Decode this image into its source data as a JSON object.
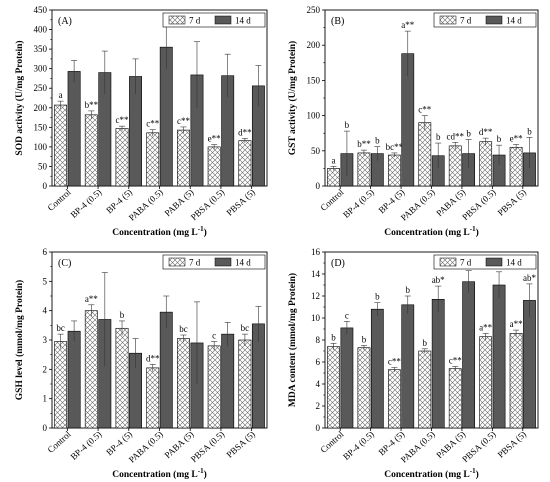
{
  "chart_data": [
    {
      "type": "bar",
      "panel_label": "(A)",
      "ylabel": "SOD activity (U/mg Protein)",
      "xlabel": "Concentration (mg L",
      "xlabel_sup": "-1",
      "xlabel_end": ")",
      "categories": [
        "Control",
        "BP-4 (0.5)",
        "BP-4 (5)",
        "PABA (0.5)",
        "PABA (5)",
        "PBSA (0.5)",
        "PBSA (5)"
      ],
      "ylim": [
        0,
        450
      ],
      "yticks": [
        0,
        50,
        100,
        150,
        200,
        250,
        300,
        350,
        400,
        450
      ],
      "legend_position": "top-right",
      "series": [
        {
          "name": "7 d",
          "values": [
            207,
            182,
            147,
            136,
            143,
            100,
            116
          ],
          "errors": [
            10,
            10,
            6,
            8,
            8,
            6,
            6
          ],
          "labels": [
            "a",
            "b**",
            "c**",
            "c**",
            "c**",
            "e**",
            "d**"
          ]
        },
        {
          "name": "14 d",
          "values": [
            293,
            290,
            280,
            355,
            284,
            282,
            256
          ],
          "errors": [
            28,
            55,
            45,
            55,
            85,
            55,
            52
          ],
          "labels": [
            "",
            "",
            "",
            "",
            "",
            "",
            ""
          ]
        }
      ]
    },
    {
      "type": "bar",
      "panel_label": "(B)",
      "ylabel": "GST activity (U/mg Protein)",
      "xlabel": "Concentration (mg L",
      "xlabel_sup": "-1",
      "xlabel_end": ")",
      "categories": [
        "Control",
        "BP-4 (0.5)",
        "BP-4 (5)",
        "PABA (0.5)",
        "PABA (5)",
        "PBSA (0.5)",
        "PBSA (5)"
      ],
      "ylim": [
        0,
        250
      ],
      "yticks": [
        0,
        50,
        100,
        150,
        200,
        250
      ],
      "legend_position": "top-right",
      "series": [
        {
          "name": "7 d",
          "values": [
            25,
            47,
            44,
            90,
            57,
            63,
            55
          ],
          "errors": [
            3,
            4,
            3,
            10,
            5,
            5,
            4
          ],
          "labels": [
            "a",
            "b**",
            "bc**",
            "c**",
            "cd**",
            "d**",
            "e**"
          ]
        },
        {
          "name": "14 d",
          "values": [
            46,
            46,
            188,
            43,
            46,
            44,
            47
          ],
          "errors": [
            32,
            10,
            32,
            18,
            20,
            14,
            22
          ],
          "labels": [
            "b",
            "b",
            "a**",
            "b",
            "b",
            "b",
            "b"
          ]
        }
      ]
    },
    {
      "type": "bar",
      "panel_label": "(C)",
      "ylabel": "GSH level (mmol/mg Protein)",
      "xlabel": "Concentration (mg L",
      "xlabel_sup": "-1",
      "xlabel_end": ")",
      "categories": [
        "Control",
        "BP-4 (0.5)",
        "BP-4 (5)",
        "PABA (0.5)",
        "PABA (5)",
        "PBSA (0.5)",
        "PBSA (5)"
      ],
      "ylim": [
        0,
        6
      ],
      "yticks": [
        0,
        1,
        2,
        3,
        4,
        5,
        6
      ],
      "legend_position": "top-right",
      "series": [
        {
          "name": "7 d",
          "values": [
            2.95,
            4.0,
            3.4,
            2.05,
            3.05,
            2.8,
            3.0
          ],
          "errors": [
            0.25,
            0.2,
            0.25,
            0.12,
            0.12,
            0.15,
            0.2
          ],
          "labels": [
            "bc",
            "a**",
            "b",
            "d**",
            "bc",
            "c",
            "bc"
          ]
        },
        {
          "name": "14 d",
          "values": [
            3.3,
            3.7,
            2.55,
            3.95,
            2.9,
            3.2,
            3.55
          ],
          "errors": [
            0.35,
            1.6,
            0.5,
            0.55,
            1.4,
            0.4,
            0.6
          ],
          "labels": [
            "",
            "",
            "",
            "",
            "",
            "",
            ""
          ]
        }
      ]
    },
    {
      "type": "bar",
      "panel_label": "(D)",
      "ylabel": "MDA content (mmol/mg Protein)",
      "xlabel": "Concentration (mg L",
      "xlabel_sup": "-1",
      "xlabel_end": ")",
      "categories": [
        "Control",
        "BP-4 (0.5)",
        "BP-4 (5)",
        "PABA (0.5)",
        "PABA (5)",
        "PBSA (0.5)",
        "PBSA (5)"
      ],
      "ylim": [
        0,
        16
      ],
      "yticks": [
        0,
        2,
        4,
        6,
        8,
        10,
        12,
        14,
        16
      ],
      "legend_position": "top-right",
      "series": [
        {
          "name": "7 d",
          "values": [
            7.4,
            7.3,
            5.3,
            7.0,
            5.4,
            8.3,
            8.6
          ],
          "errors": [
            0.3,
            0.2,
            0.2,
            0.2,
            0.2,
            0.3,
            0.3
          ],
          "labels": [
            "b",
            "b",
            "c**",
            "b",
            "c**",
            "a**",
            "a**"
          ]
        },
        {
          "name": "14 d",
          "values": [
            9.1,
            10.8,
            11.2,
            11.7,
            13.3,
            13.0,
            11.6
          ],
          "errors": [
            0.6,
            0.6,
            0.8,
            1.2,
            1.0,
            1.2,
            1.5
          ],
          "labels": [
            "c",
            "b",
            "b",
            "ab*",
            "a**",
            "a**",
            "ab*"
          ]
        }
      ]
    }
  ]
}
